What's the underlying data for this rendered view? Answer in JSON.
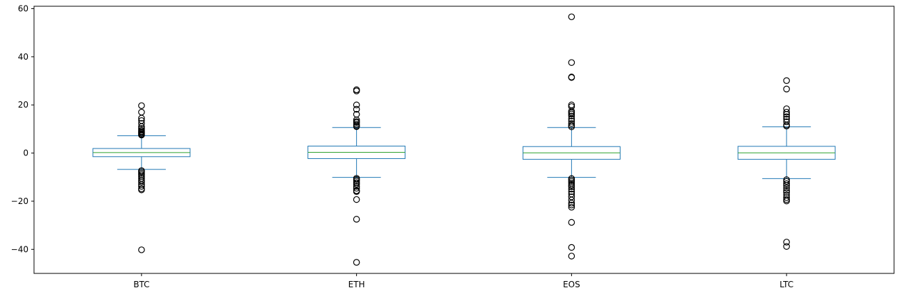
{
  "chart_data": {
    "type": "box",
    "title": "",
    "xlabel": "",
    "ylabel": "",
    "ylim": [
      -50,
      61
    ],
    "yticks": [
      -40,
      -20,
      0,
      20,
      40,
      60
    ],
    "ytick_labels": [
      "−40",
      "−20",
      "0",
      "20",
      "40",
      "60"
    ],
    "grid": false,
    "categories": [
      "BTC",
      "ETH",
      "EOS",
      "LTC"
    ],
    "boxes": [
      {
        "name": "BTC",
        "whisker_low": -6.8,
        "q1": -1.5,
        "median": 0.2,
        "q3": 1.9,
        "whisker_high": 7.2,
        "outliers": [
          19.7,
          17.0,
          14.5,
          13.5,
          12.3,
          11.0,
          10.2,
          9.5,
          9.0,
          8.6,
          8.2,
          7.8,
          7.5,
          -7.3,
          -7.8,
          -8.4,
          -9.0,
          -9.7,
          -10.5,
          -11.3,
          -12.0,
          -13.0,
          -13.8,
          -14.8,
          -15.3,
          -40.2
        ]
      },
      {
        "name": "ETH",
        "whisker_low": -10.1,
        "q1": -2.3,
        "median": 0.3,
        "q3": 2.9,
        "whisker_high": 10.6,
        "outliers": [
          26.3,
          25.8,
          20.0,
          18.2,
          16.1,
          13.8,
          13.1,
          12.7,
          12.0,
          11.4,
          11.0,
          -10.5,
          -11.0,
          -11.6,
          -12.3,
          -12.9,
          -13.8,
          -14.6,
          -15.6,
          -16.0,
          -19.3,
          -27.5,
          -45.4
        ]
      },
      {
        "name": "EOS",
        "whisker_low": -10.1,
        "q1": -2.6,
        "median": 0.1,
        "q3": 2.7,
        "whisker_high": 10.6,
        "outliers": [
          56.6,
          37.6,
          31.6,
          31.4,
          20.0,
          19.3,
          17.4,
          16.8,
          16.2,
          15.4,
          14.2,
          13.3,
          12.3,
          11.5,
          10.9,
          -10.6,
          -11.2,
          -11.8,
          -12.5,
          -13.3,
          -14.0,
          -15.0,
          -16.0,
          -17.0,
          -18.2,
          -19.5,
          -20.8,
          -21.6,
          -22.5,
          -28.8,
          -39.2,
          -42.8
        ]
      },
      {
        "name": "LTC",
        "whisker_low": -10.6,
        "q1": -2.6,
        "median": 0.1,
        "q3": 2.8,
        "whisker_high": 10.9,
        "outliers": [
          30.1,
          26.6,
          18.4,
          17.0,
          16.1,
          15.1,
          14.1,
          13.0,
          11.7,
          11.2,
          -11.1,
          -11.8,
          -12.7,
          -13.5,
          -14.5,
          -15.5,
          -16.3,
          -17.4,
          -18.5,
          -19.3,
          -19.9,
          -37.0,
          -38.8
        ]
      }
    ],
    "colors": {
      "box": "#1f77b4",
      "median": "#2ca02c",
      "outlier": "#000000",
      "axes": "#000000",
      "background": "#ffffff"
    }
  }
}
